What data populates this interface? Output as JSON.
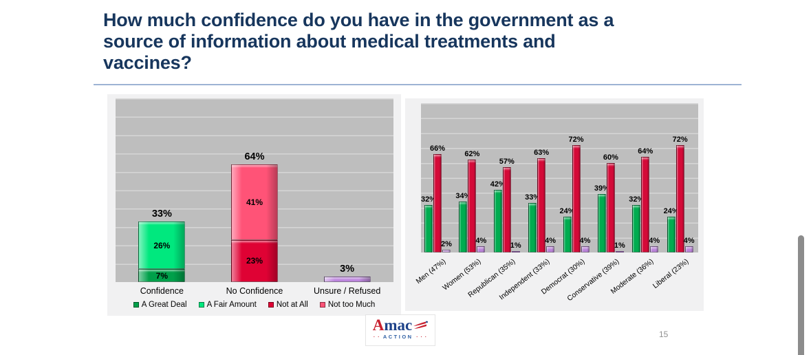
{
  "header": {
    "title_lines": [
      "How much confidence do you have in the government as a",
      "source of information about medical treatments and",
      "vaccines?"
    ]
  },
  "footer": {
    "logo": {
      "brand_a": "A",
      "brand_rest": "mac",
      "sub": "ACTION",
      "dots_left": "· ·",
      "dots_right": "· · ·"
    },
    "page_number": "15"
  },
  "colors": {
    "title_navy": "#17365D",
    "divider_blue": "#9DB3D4",
    "great_deal": "#00A04A",
    "fair_amount": "#00E87E",
    "not_at_all": "#DF0234",
    "not_too_much": "#FF5377",
    "unsure": "#BC85DD",
    "green": "#00AC50",
    "red": "#D40A38",
    "purple": "#B983D8",
    "brand_red": "#C8202F",
    "brand_blue": "#1E4289"
  },
  "chart_data": [
    {
      "type": "bar",
      "subtype": "stacked",
      "title": "",
      "ylim": [
        0,
        100
      ],
      "gridline_step": 10,
      "grid": true,
      "legend_position": "bottom",
      "categories": [
        "Confidence",
        "No Confidence",
        "Unsure / Refused"
      ],
      "totals": [
        33,
        64,
        3
      ],
      "stacks": [
        [
          {
            "series": "A Great Deal",
            "value": 7,
            "color_key": "great_deal"
          },
          {
            "series": "A Fair Amount",
            "value": 26,
            "color_key": "fair_amount"
          }
        ],
        [
          {
            "series": "Not at All",
            "value": 23,
            "color_key": "not_at_all"
          },
          {
            "series": "Not too Much",
            "value": 41,
            "color_key": "not_too_much"
          }
        ],
        [
          {
            "series": "Unsure / Refused",
            "value": 3,
            "color_key": "unsure"
          }
        ]
      ],
      "legend": [
        {
          "label": "A Great Deal",
          "color_key": "great_deal"
        },
        {
          "label": "A Fair Amount",
          "color_key": "fair_amount"
        },
        {
          "label": "Not at All",
          "color_key": "not_at_all"
        },
        {
          "label": "Not too Much",
          "color_key": "not_too_much"
        }
      ]
    },
    {
      "type": "bar",
      "subtype": "grouped",
      "title": "",
      "ylim": [
        0,
        100
      ],
      "gridline_step": 10,
      "grid": true,
      "categories": [
        "Men (47%)",
        "Women (53%)",
        "Republican (35%)",
        "Independent (33%)",
        "Democrat (30%)",
        "Conservative (39%)",
        "Moderate (36%)",
        "Liberal (23%)"
      ],
      "series": [
        {
          "name": "Confidence",
          "color_key": "green",
          "values": [
            32,
            34,
            42,
            33,
            24,
            39,
            32,
            24
          ]
        },
        {
          "name": "No Confidence",
          "color_key": "red",
          "values": [
            66,
            62,
            57,
            63,
            72,
            60,
            64,
            72
          ]
        },
        {
          "name": "Unsure / Refused",
          "color_key": "purple",
          "values": [
            2,
            4,
            1,
            4,
            4,
            1,
            4,
            4
          ]
        }
      ]
    }
  ]
}
